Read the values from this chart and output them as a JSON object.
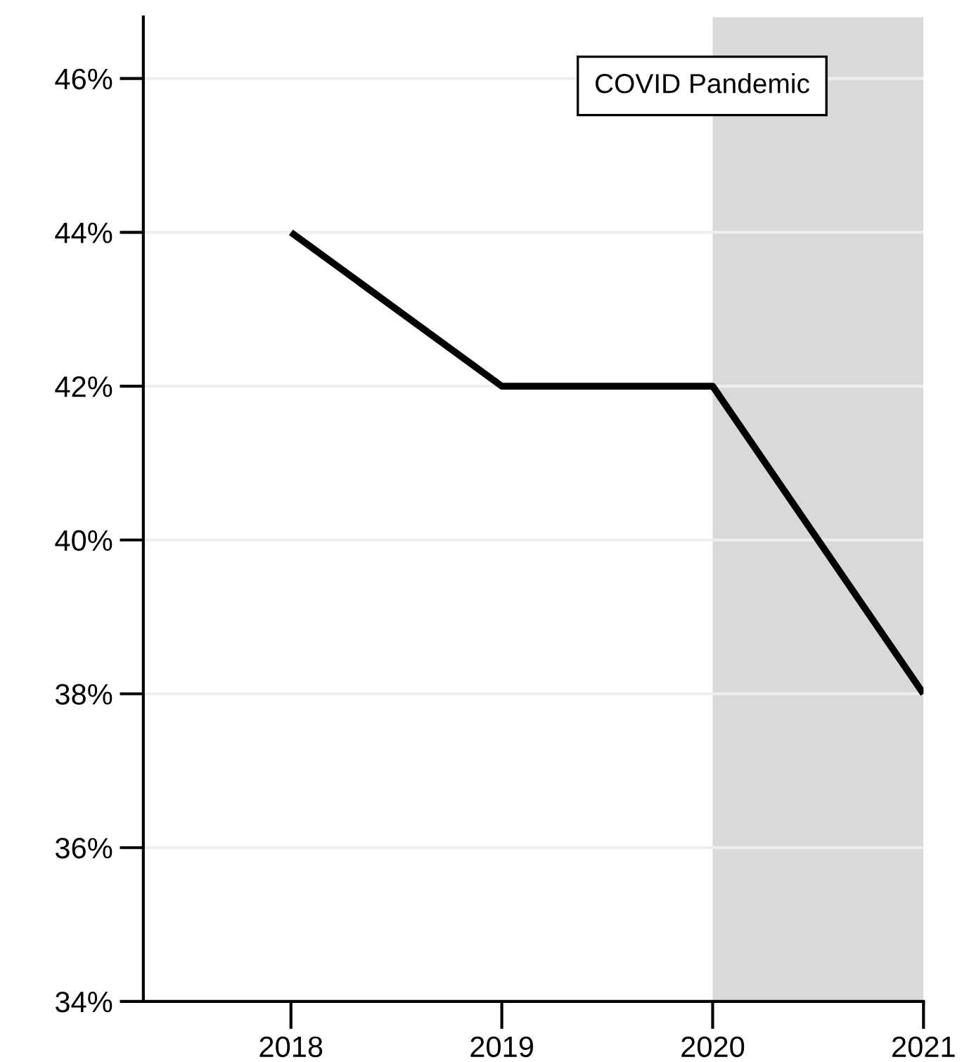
{
  "chart_data": {
    "type": "line",
    "x": [
      2018,
      2019,
      2020,
      2021
    ],
    "series": [
      {
        "color": "#000000",
        "values": [
          44,
          42,
          42,
          38
        ]
      }
    ],
    "xlim": [
      2017.3,
      2021
    ],
    "xticks": [
      2018,
      2019,
      2020,
      2021
    ],
    "ylim": [
      34,
      46.8
    ],
    "yticks": [
      {
        "value": 34,
        "label": "34%"
      },
      {
        "value": 36,
        "label": "36%"
      },
      {
        "value": 38,
        "label": "38%"
      },
      {
        "value": 40,
        "label": "40%"
      },
      {
        "value": 42,
        "label": "42%"
      },
      {
        "value": 44,
        "label": "44%"
      },
      {
        "value": 46,
        "label": "46%"
      }
    ],
    "grid": "y",
    "marker": "none",
    "line_style": "solid",
    "bands": [
      {
        "axis": "x",
        "from": 2020,
        "to": 2021,
        "label": "COVID Pandemic",
        "color": "#d9d9db"
      }
    ]
  }
}
